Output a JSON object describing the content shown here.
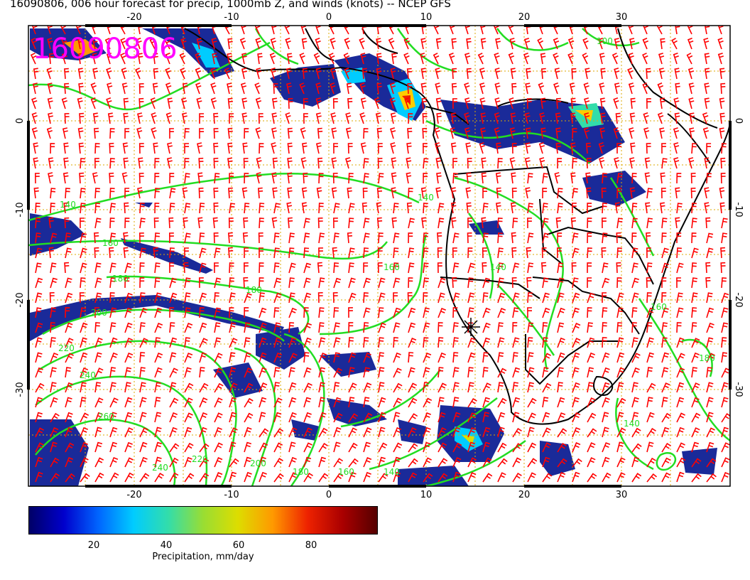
{
  "title": "16090806, 006 hour forecast for precip, 1000mb Z, and winds (knots) -- NCEP GFS",
  "stamp": "16090806",
  "axes": {
    "lon_top": [
      "-20",
      "-10",
      "0",
      "10",
      "20",
      "30"
    ],
    "lon_bottom": [
      "-20",
      "-10",
      "0",
      "10",
      "20",
      "30"
    ],
    "lat_left": [
      "0",
      "-10",
      "-20",
      "-30"
    ],
    "lat_right": [
      "0",
      "-10",
      "-20",
      "-30"
    ]
  },
  "contour_labels": [
    "100",
    "140",
    "160",
    "180",
    "180",
    "200",
    "220",
    "240",
    "260",
    "240",
    "220",
    "200",
    "180",
    "160",
    "140",
    "140",
    "160",
    "160",
    "140",
    "180",
    "140"
  ],
  "colorbar": {
    "ticks": [
      "20",
      "40",
      "60",
      "80"
    ],
    "label": "Precipitation, mm/day",
    "colors": [
      "#000066",
      "#0000cc",
      "#0066ff",
      "#00ccff",
      "#33ddaa",
      "#99dd33",
      "#dddd00",
      "#ff9900",
      "#ee2200",
      "#aa0000",
      "#550000"
    ]
  },
  "colors": {
    "contour": "#22dd22",
    "wind": "#ff0000",
    "coast": "#000000",
    "grid": "#ddaa00",
    "precip_low": "#1a2a99"
  }
}
